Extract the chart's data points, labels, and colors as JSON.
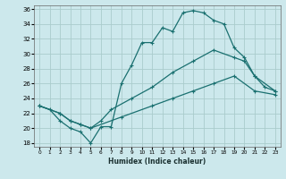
{
  "xlabel": "Humidex (Indice chaleur)",
  "bg_color": "#cce8ec",
  "grid_color": "#aacccc",
  "line_color": "#1a7070",
  "xlim": [
    -0.5,
    23.5
  ],
  "ylim": [
    17.5,
    36.5
  ],
  "xticks": [
    0,
    1,
    2,
    3,
    4,
    5,
    6,
    7,
    8,
    9,
    10,
    11,
    12,
    13,
    14,
    15,
    16,
    17,
    18,
    19,
    20,
    21,
    22,
    23
  ],
  "yticks": [
    18,
    20,
    22,
    24,
    26,
    28,
    30,
    32,
    34,
    36
  ],
  "line1_x": [
    0,
    1,
    2,
    3,
    4,
    5,
    6,
    7,
    8,
    9,
    10,
    11,
    12,
    13,
    14,
    15,
    16,
    17,
    18,
    19,
    20,
    21,
    22,
    23
  ],
  "line1_y": [
    23,
    22.5,
    21,
    20,
    19.5,
    18,
    20.2,
    20.2,
    26,
    28.5,
    31.5,
    31.5,
    33.5,
    33,
    35.5,
    35.8,
    35.5,
    34.5,
    34,
    30.8,
    29.5,
    27,
    25.5,
    25
  ],
  "line2_x": [
    0,
    2,
    3,
    4,
    5,
    6,
    7,
    9,
    11,
    13,
    15,
    17,
    19,
    20,
    21,
    23
  ],
  "line2_y": [
    23,
    22,
    21,
    20.5,
    20,
    21,
    22.5,
    24,
    25.5,
    27.5,
    29,
    30.5,
    29.5,
    29,
    27,
    25
  ],
  "line3_x": [
    0,
    2,
    3,
    4,
    5,
    8,
    11,
    13,
    15,
    17,
    19,
    21,
    23
  ],
  "line3_y": [
    23,
    22,
    21,
    20.5,
    20,
    21.5,
    23,
    24,
    25,
    26,
    27,
    25,
    24.5
  ]
}
